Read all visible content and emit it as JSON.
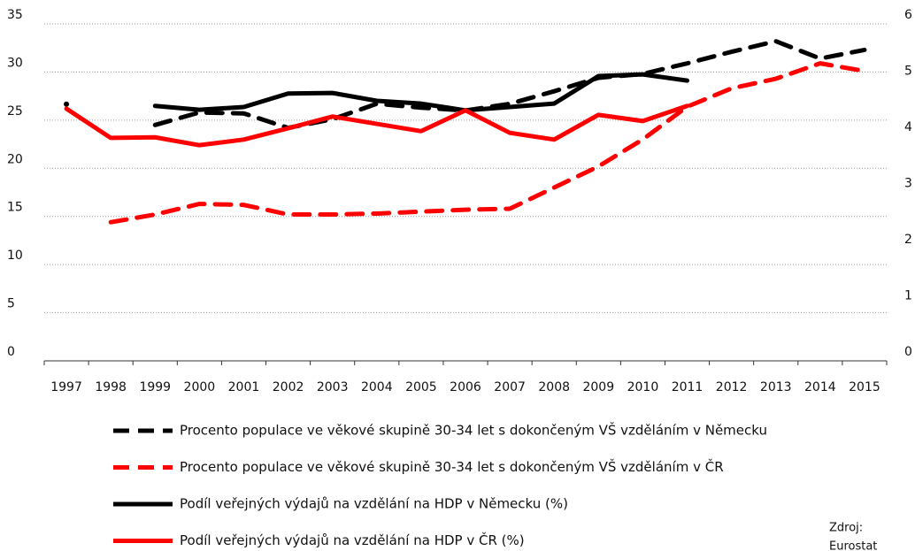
{
  "chart_data": {
    "type": "line",
    "categories": [
      "1997",
      "1998",
      "1999",
      "2000",
      "2001",
      "2002",
      "2003",
      "2004",
      "2005",
      "2006",
      "2007",
      "2008",
      "2009",
      "2010",
      "2011",
      "2012",
      "2013",
      "2014",
      "2015"
    ],
    "ylim": [
      0,
      35
    ],
    "yticks": [
      0,
      5,
      10,
      15,
      20,
      25,
      30,
      35
    ],
    "y2lim": [
      0,
      6
    ],
    "y2ticks": [
      0,
      1,
      2,
      3,
      4,
      5,
      6
    ],
    "grid": true,
    "series": [
      {
        "name": "Procento populace ve věkové skupině 30-34 let s dokončeným VŠ vzděláním v Německu",
        "color": "#000000",
        "dash": true,
        "values": [
          null,
          null,
          24.5,
          25.8,
          25.7,
          24.2,
          25.1,
          26.7,
          26.3,
          26.0,
          26.7,
          28.0,
          29.4,
          29.8,
          30.9,
          32.1,
          33.2,
          31.4,
          32.3
        ]
      },
      {
        "name": "Procento populace ve věkové skupině 30-34 let s dokončeným VŠ vzděláním v ČR",
        "color": "#ff0000",
        "dash": true,
        "values": [
          null,
          14.4,
          15.2,
          16.3,
          16.2,
          15.2,
          15.2,
          15.3,
          15.5,
          15.7,
          15.8,
          18.0,
          20.2,
          23.0,
          26.4,
          28.3,
          29.3,
          30.9,
          30.1
        ]
      },
      {
        "name": "Podíl veřejných výdajů na vzdělání na HDP v Německu (%)",
        "color": "#000000",
        "dash": false,
        "axis": "y2",
        "values": [
          4.57,
          null,
          4.54,
          4.47,
          4.52,
          4.76,
          4.77,
          4.63,
          4.58,
          4.46,
          4.52,
          4.58,
          5.07,
          5.1,
          4.99,
          null,
          null,
          null,
          null
        ]
      },
      {
        "name": "Podíl veřejných výdajů na vzdělání na HDP v ČR (%)",
        "color": "#ff0000",
        "dash": false,
        "axis": "y2",
        "values": [
          4.49,
          3.97,
          3.98,
          3.84,
          3.94,
          4.14,
          4.35,
          4.22,
          4.09,
          4.46,
          4.06,
          3.94,
          4.38,
          4.27,
          4.54,
          null,
          null,
          null,
          null
        ]
      }
    ],
    "source_label": "Zdroj:",
    "source": "Eurostat"
  }
}
